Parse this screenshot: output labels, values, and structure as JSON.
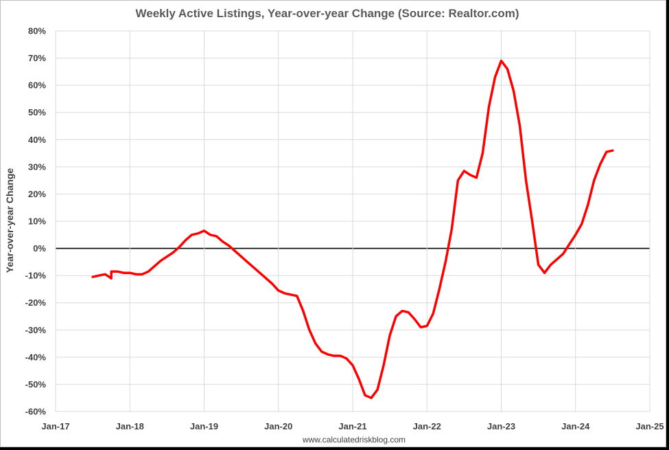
{
  "chart_data": {
    "type": "line",
    "title": "Weekly Active Listings, Year-over-year Change (Source: Realtor.com)",
    "ylabel": "Year-over-year Change",
    "xlabel": "",
    "footer": "www.calculatedriskblog.com",
    "x_ticks": [
      "Jan-17",
      "Jan-18",
      "Jan-19",
      "Jan-20",
      "Jan-21",
      "Jan-22",
      "Jan-23",
      "Jan-24",
      "Jan-25"
    ],
    "y_ticks": [
      "80%",
      "70%",
      "60%",
      "50%",
      "40%",
      "30%",
      "20%",
      "10%",
      "0%",
      "-10%",
      "-20%",
      "-30%",
      "-40%",
      "-50%",
      "-60%"
    ],
    "xlim": [
      "2017-01",
      "2025-01"
    ],
    "ylim": [
      -60,
      80
    ],
    "grid": true,
    "line_color": "#ff0000",
    "zero_line_color": "#000000",
    "series": [
      {
        "values": [
          [
            "2017-07",
            -10.5
          ],
          [
            "2017-08",
            -10
          ],
          [
            "2017-09",
            -9.5
          ],
          [
            "2017-10",
            -11
          ],
          [
            "2017-10",
            -8.5
          ],
          [
            "2017-11",
            -8.5
          ],
          [
            "2017-12",
            -9
          ],
          [
            "2018-01",
            -9
          ],
          [
            "2018-02",
            -9.5
          ],
          [
            "2018-03",
            -9.5
          ],
          [
            "2018-04",
            -8.5
          ],
          [
            "2018-05",
            -6.5
          ],
          [
            "2018-06",
            -4.5
          ],
          [
            "2018-07",
            -3
          ],
          [
            "2018-08",
            -1.5
          ],
          [
            "2018-09",
            0.5
          ],
          [
            "2018-10",
            3
          ],
          [
            "2018-11",
            5
          ],
          [
            "2018-12",
            5.5
          ],
          [
            "2019-01",
            6.5
          ],
          [
            "2019-02",
            5
          ],
          [
            "2019-03",
            4.5
          ],
          [
            "2019-04",
            2.5
          ],
          [
            "2019-05",
            1
          ],
          [
            "2019-06",
            -1
          ],
          [
            "2019-07",
            -3
          ],
          [
            "2019-08",
            -5
          ],
          [
            "2019-09",
            -7
          ],
          [
            "2019-10",
            -9
          ],
          [
            "2019-11",
            -11
          ],
          [
            "2019-12",
            -13
          ],
          [
            "2020-01",
            -15.5
          ],
          [
            "2020-02",
            -16.5
          ],
          [
            "2020-03",
            -17
          ],
          [
            "2020-04",
            -17.5
          ],
          [
            "2020-05",
            -23
          ],
          [
            "2020-06",
            -30
          ],
          [
            "2020-07",
            -35
          ],
          [
            "2020-08",
            -38
          ],
          [
            "2020-09",
            -39
          ],
          [
            "2020-10",
            -39.5
          ],
          [
            "2020-11",
            -39.5
          ],
          [
            "2020-12",
            -40.5
          ],
          [
            "2021-01",
            -43
          ],
          [
            "2021-02",
            -48
          ],
          [
            "2021-03",
            -54
          ],
          [
            "2021-04",
            -55
          ],
          [
            "2021-05",
            -52
          ],
          [
            "2021-06",
            -43
          ],
          [
            "2021-07",
            -32
          ],
          [
            "2021-08",
            -25
          ],
          [
            "2021-09",
            -23
          ],
          [
            "2021-10",
            -23.5
          ],
          [
            "2021-11",
            -26
          ],
          [
            "2021-12",
            -29
          ],
          [
            "2022-01",
            -28.5
          ],
          [
            "2022-02",
            -24
          ],
          [
            "2022-03",
            -15
          ],
          [
            "2022-04",
            -5
          ],
          [
            "2022-05",
            7
          ],
          [
            "2022-06",
            25
          ],
          [
            "2022-07",
            28.5
          ],
          [
            "2022-08",
            27
          ],
          [
            "2022-09",
            26
          ],
          [
            "2022-10",
            35
          ],
          [
            "2022-11",
            52
          ],
          [
            "2022-12",
            63
          ],
          [
            "2023-01",
            69
          ],
          [
            "2023-02",
            66
          ],
          [
            "2023-03",
            58
          ],
          [
            "2023-04",
            45
          ],
          [
            "2023-05",
            25
          ],
          [
            "2023-06",
            10
          ],
          [
            "2023-07",
            -6
          ],
          [
            "2023-08",
            -9
          ],
          [
            "2023-09",
            -6
          ],
          [
            "2023-10",
            -4
          ],
          [
            "2023-11",
            -2
          ],
          [
            "2023-12",
            1.5
          ],
          [
            "2024-01",
            5
          ],
          [
            "2024-02",
            9
          ],
          [
            "2024-03",
            16
          ],
          [
            "2024-04",
            25
          ],
          [
            "2024-05",
            31
          ],
          [
            "2024-06",
            35.5
          ],
          [
            "2024-07",
            36
          ]
        ]
      }
    ]
  }
}
